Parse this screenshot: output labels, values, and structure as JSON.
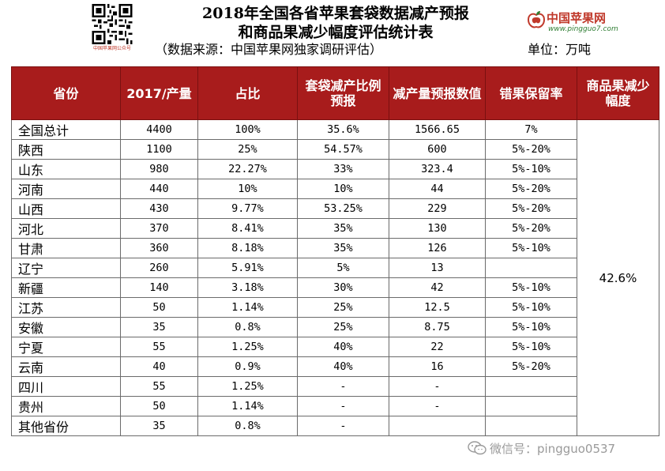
{
  "header": {
    "title_line1": "2018年全国各省苹果套袋数据减产预报",
    "title_line2": "和商品果减少幅度评估统计表",
    "source": "（数据来源：中国苹果网独家调研评估）",
    "unit": "单位：万吨",
    "qr_caption": "中国苹果网公众号",
    "brand_name": "中国苹果网",
    "brand_url": "www.pingguo7.com",
    "brand_color": "#c0392b"
  },
  "table": {
    "header_color": "#a81c1c",
    "columns": [
      "省份",
      "2017/产量",
      "占比",
      "套袋减产比例预报",
      "减产量预报数值",
      "错果保留率",
      "商品果减少幅度"
    ],
    "merged_value": "42.6%",
    "rows": [
      {
        "province": "全国总计",
        "output": "4400",
        "share": "100%",
        "bag_cut": "35.6%",
        "cut_value": "1566.65",
        "retain": "7%"
      },
      {
        "province": "陕西",
        "output": "1100",
        "share": "25%",
        "bag_cut": "54.57%",
        "cut_value": "600",
        "retain": "5%-20%"
      },
      {
        "province": "山东",
        "output": "980",
        "share": "22.27%",
        "bag_cut": "33%",
        "cut_value": "323.4",
        "retain": "5%-10%"
      },
      {
        "province": "河南",
        "output": "440",
        "share": "10%",
        "bag_cut": "10%",
        "cut_value": "44",
        "retain": "5%-20%"
      },
      {
        "province": "山西",
        "output": "430",
        "share": "9.77%",
        "bag_cut": "53.25%",
        "cut_value": "229",
        "retain": "5%-20%"
      },
      {
        "province": "河北",
        "output": "370",
        "share": "8.41%",
        "bag_cut": "35%",
        "cut_value": "130",
        "retain": "5%-20%"
      },
      {
        "province": "甘肃",
        "output": "360",
        "share": "8.18%",
        "bag_cut": "35%",
        "cut_value": "126",
        "retain": "5%-10%"
      },
      {
        "province": "辽宁",
        "output": "260",
        "share": "5.91%",
        "bag_cut": "5%",
        "cut_value": "13",
        "retain": ""
      },
      {
        "province": "新疆",
        "output": "140",
        "share": "3.18%",
        "bag_cut": "30%",
        "cut_value": "42",
        "retain": "5%-10%"
      },
      {
        "province": "江苏",
        "output": "50",
        "share": "1.14%",
        "bag_cut": "25%",
        "cut_value": "12.5",
        "retain": "5%-10%"
      },
      {
        "province": "安徽",
        "output": "35",
        "share": "0.8%",
        "bag_cut": "25%",
        "cut_value": "8.75",
        "retain": "5%-10%"
      },
      {
        "province": "宁夏",
        "output": "55",
        "share": "1.25%",
        "bag_cut": "40%",
        "cut_value": "22",
        "retain": "5%-10%"
      },
      {
        "province": "云南",
        "output": "40",
        "share": "0.9%",
        "bag_cut": "40%",
        "cut_value": "16",
        "retain": "5%-20%"
      },
      {
        "province": "四川",
        "output": "55",
        "share": "1.25%",
        "bag_cut": "-",
        "cut_value": "-",
        "retain": ""
      },
      {
        "province": "贵州",
        "output": "50",
        "share": "1.14%",
        "bag_cut": "-",
        "cut_value": "-",
        "retain": ""
      },
      {
        "province": "其他省份",
        "output": "35",
        "share": "0.8%",
        "bag_cut": "-",
        "cut_value": "",
        "retain": ""
      }
    ]
  },
  "watermark": {
    "text": "微信号：pingguo0537",
    "icon": "wechat-icon"
  }
}
